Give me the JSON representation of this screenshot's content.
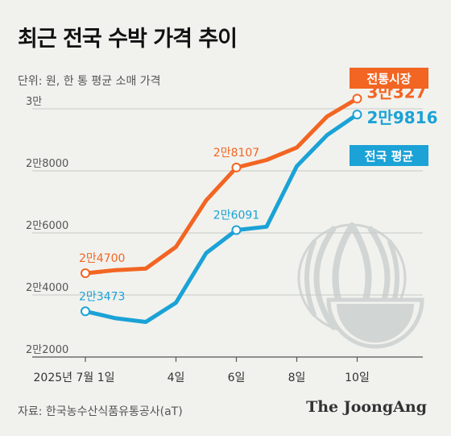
{
  "header": {
    "title": "최근 전국 수박 가격 추이",
    "subtitle": "단위: 원, 한 통 평균 소매 가격"
  },
  "footer": {
    "source": "자료: 한국농수산식품유통공사(aT)",
    "brand": "The JoongAng"
  },
  "colors": {
    "traditional": "#f26522",
    "national": "#1ba2d6",
    "watermelon": "#d1d5d4",
    "background": "#f1f2ee"
  },
  "chart_data": {
    "type": "line",
    "title": "최근 전국 수박 가격 추이",
    "subtitle": "단위: 원, 한 통 평균 소매 가격",
    "xlabel": "",
    "ylabel": "",
    "ylim": [
      22000,
      30000
    ],
    "y_ticks": [
      22000,
      24000,
      26000,
      28000,
      30000
    ],
    "y_tick_labels": [
      "2만2000",
      "2만4000",
      "2만6000",
      "2만8000",
      "3만"
    ],
    "x": [
      1,
      2,
      3,
      4,
      5,
      6,
      7,
      8,
      9,
      10
    ],
    "x_tick_positions": [
      1,
      4,
      6,
      8,
      10
    ],
    "x_tick_labels": [
      "2025년 7월 1일",
      "4일",
      "6일",
      "8일",
      "10일"
    ],
    "series": [
      {
        "name": "전통시장",
        "color": "#f26522",
        "values": [
          24700,
          24800,
          24850,
          25550,
          27050,
          28107,
          28350,
          28750,
          29750,
          30327
        ],
        "annotations": [
          {
            "index": 0,
            "label": "2만4700"
          },
          {
            "index": 5,
            "label": "2만8107"
          },
          {
            "index": 9,
            "label": "3만327"
          }
        ]
      },
      {
        "name": "전국 평균",
        "color": "#1ba2d6",
        "values": [
          23473,
          23250,
          23130,
          23750,
          25350,
          26091,
          26200,
          28150,
          29150,
          29816
        ],
        "annotations": [
          {
            "index": 0,
            "label": "2만3473"
          },
          {
            "index": 5,
            "label": "2만6091"
          },
          {
            "index": 9,
            "label": "2만9816"
          }
        ]
      }
    ],
    "grid": false,
    "legend": "right"
  }
}
